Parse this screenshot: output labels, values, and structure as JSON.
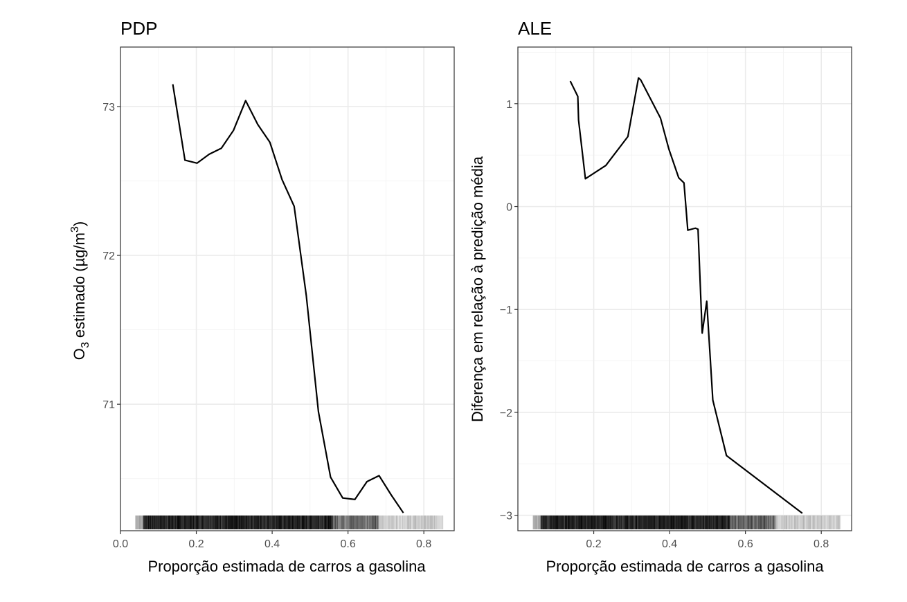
{
  "chart_data": [
    {
      "type": "line",
      "title": "PDP",
      "xlabel": "Proporção estimada de carros a gasolina",
      "ylabel_main": "O",
      "ylabel_sub": "3",
      "ylabel_rest": " estimado (µg/m",
      "ylabel_sup": "3",
      "ylabel_close": ")",
      "xlim": [
        0.0,
        0.88
      ],
      "ylim": [
        70.15,
        73.4
      ],
      "xticks": [
        0.0,
        0.2,
        0.4,
        0.6,
        0.8
      ],
      "xtick_labels": [
        "0.0",
        "0.2",
        "0.4",
        "0.6",
        "0.8"
      ],
      "yticks": [
        71,
        72,
        73
      ],
      "ytick_labels": [
        "71",
        "72",
        "73"
      ],
      "grid": true,
      "series": [
        {
          "x": [
            0.138,
            0.17,
            0.202,
            0.234,
            0.266,
            0.298,
            0.33,
            0.362,
            0.394,
            0.426,
            0.458,
            0.49,
            0.522,
            0.554,
            0.586,
            0.618,
            0.65,
            0.682,
            0.714,
            0.746
          ],
          "y": [
            73.15,
            72.64,
            72.62,
            72.68,
            72.72,
            72.84,
            73.04,
            72.88,
            72.76,
            72.51,
            72.33,
            71.73,
            70.95,
            70.51,
            70.37,
            70.36,
            70.48,
            70.52,
            70.39,
            70.27
          ]
        }
      ],
      "rug_range": [
        0.04,
        0.85
      ]
    },
    {
      "type": "line",
      "title": "ALE",
      "xlabel": "Proporção estimada de carros a gasolina",
      "ylabel": "Diferença em relação à predição média",
      "xlim": [
        0.0,
        0.88
      ],
      "ylim": [
        -3.15,
        1.55
      ],
      "xticks": [
        0.2,
        0.4,
        0.6,
        0.8
      ],
      "xtick_labels": [
        "0.2",
        "0.4",
        "0.6",
        "0.8"
      ],
      "yticks": [
        -3,
        -2,
        -1,
        0,
        1
      ],
      "ytick_labels": [
        "−3",
        "−2",
        "−1",
        "0",
        "1"
      ],
      "grid": true,
      "series": [
        {
          "x": [
            0.138,
            0.158,
            0.16,
            0.178,
            0.232,
            0.29,
            0.318,
            0.324,
            0.376,
            0.398,
            0.424,
            0.438,
            0.448,
            0.468,
            0.475,
            0.486,
            0.498,
            0.514,
            0.55,
            0.75
          ],
          "y": [
            1.22,
            1.07,
            0.84,
            0.27,
            0.4,
            0.68,
            1.25,
            1.23,
            0.86,
            0.56,
            0.28,
            0.23,
            -0.23,
            -0.21,
            -0.22,
            -1.23,
            -0.92,
            -1.88,
            -2.42,
            -2.98
          ]
        }
      ],
      "rug_range": [
        0.04,
        0.85
      ]
    }
  ]
}
